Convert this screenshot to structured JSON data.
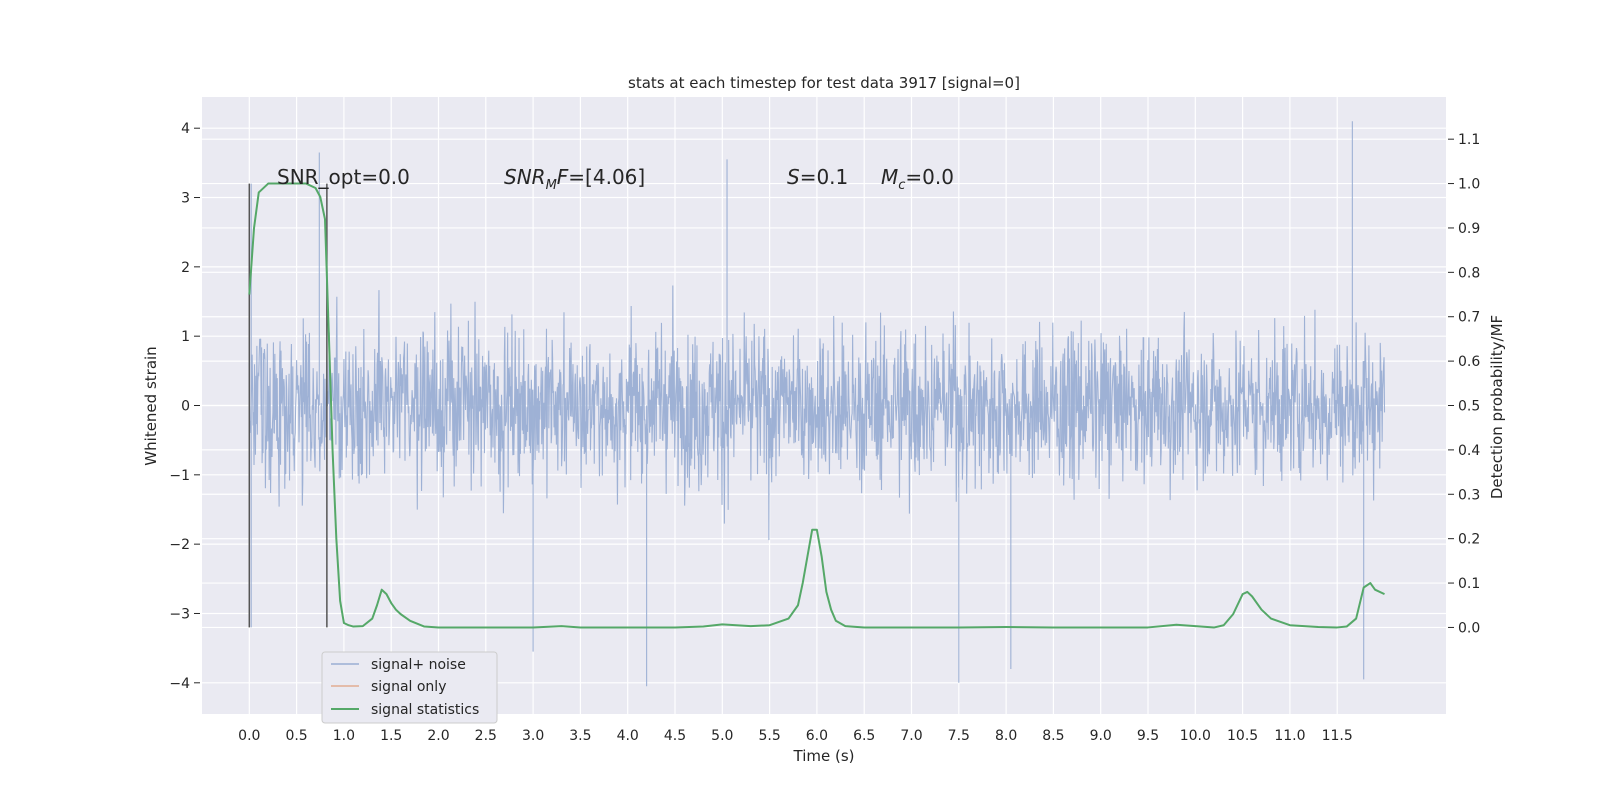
{
  "chart_data": {
    "type": "line",
    "title": "stats at each timestep for test data 3917 [signal=0]",
    "xlabel": "Time (s)",
    "ylabel": "Whitened strain",
    "y2label": "Detection probability/MF",
    "xlim": [
      -0.5,
      12.65
    ],
    "ylim": [
      -4.45,
      4.45
    ],
    "y2lim": [
      -0.195,
      1.195
    ],
    "grid": true,
    "legend_position": "lower-left",
    "x_ticks": [
      "0.0",
      "0.5",
      "1.0",
      "1.5",
      "2.0",
      "2.5",
      "3.0",
      "3.5",
      "4.0",
      "4.5",
      "5.0",
      "5.5",
      "6.0",
      "6.5",
      "7.0",
      "7.5",
      "8.0",
      "8.5",
      "9.0",
      "9.5",
      "10.0",
      "10.5",
      "11.0",
      "11.5"
    ],
    "y_ticks": [
      "4",
      "3",
      "2",
      "1",
      "0",
      "−1",
      "−2",
      "−3",
      "−4"
    ],
    "y2_ticks": [
      "1.1",
      "1.0",
      "0.9",
      "0.8",
      "0.7",
      "0.6",
      "0.5",
      "0.4",
      "0.3",
      "0.2",
      "0.1",
      "0.0"
    ],
    "annotations": [
      {
        "label": "SNR_opt=0.0"
      },
      {
        "label_main": "SNR",
        "label_sub": "M",
        "label_rest": "F=[4.06]"
      },
      {
        "label_main": "S",
        "label_rest": "=0.1"
      },
      {
        "label_main": "M",
        "label_sub": "c",
        "label_rest": "=0.0"
      }
    ],
    "vertical_markers": [
      0.0,
      0.82
    ],
    "series": [
      {
        "name": "signal+ noise",
        "color": "#9aaed3",
        "x_range": [
          0.0,
          12.0
        ],
        "typical_envelope": [
          -1.9,
          1.9
        ],
        "notable_extremes": [
          {
            "x": 0.02,
            "y": 3.2
          },
          {
            "x": 0.02,
            "y": -3.2
          },
          {
            "x": 0.74,
            "y": 3.65
          },
          {
            "x": 3.0,
            "y": -3.55
          },
          {
            "x": 4.2,
            "y": -4.05
          },
          {
            "x": 5.05,
            "y": 3.55
          },
          {
            "x": 7.5,
            "y": -4.0
          },
          {
            "x": 8.05,
            "y": -3.8
          },
          {
            "x": 11.66,
            "y": 4.1
          },
          {
            "x": 11.78,
            "y": -3.95
          }
        ]
      },
      {
        "name": "signal only",
        "color": "#dd8452",
        "x": [],
        "y": []
      },
      {
        "name": "signal statistics",
        "color": "#55a868",
        "axis": "right",
        "x": [
          0.0,
          0.05,
          0.1,
          0.2,
          0.3,
          0.4,
          0.5,
          0.6,
          0.7,
          0.75,
          0.8,
          0.85,
          0.88,
          0.92,
          0.96,
          1.0,
          1.05,
          1.1,
          1.2,
          1.3,
          1.35,
          1.4,
          1.45,
          1.5,
          1.55,
          1.6,
          1.7,
          1.85,
          2.0,
          2.5,
          3.0,
          3.3,
          3.5,
          4.0,
          4.5,
          4.8,
          5.0,
          5.3,
          5.5,
          5.7,
          5.8,
          5.85,
          5.9,
          5.95,
          6.0,
          6.05,
          6.1,
          6.15,
          6.2,
          6.3,
          6.5,
          7.0,
          7.5,
          8.0,
          8.5,
          9.0,
          9.5,
          9.8,
          10.0,
          10.2,
          10.3,
          10.4,
          10.5,
          10.55,
          10.6,
          10.7,
          10.8,
          11.0,
          11.3,
          11.5,
          11.6,
          11.7,
          11.78,
          11.85,
          11.9,
          12.0
        ],
        "y": [
          0.75,
          0.9,
          0.98,
          1.0,
          1.0,
          1.0,
          1.0,
          1.0,
          0.99,
          0.97,
          0.92,
          0.6,
          0.4,
          0.2,
          0.06,
          0.01,
          0.005,
          0.002,
          0.003,
          0.02,
          0.05,
          0.085,
          0.075,
          0.055,
          0.04,
          0.03,
          0.015,
          0.002,
          0.0,
          0.0,
          0.0,
          0.003,
          0.0,
          0.0,
          0.0,
          0.002,
          0.007,
          0.003,
          0.005,
          0.02,
          0.05,
          0.1,
          0.16,
          0.22,
          0.22,
          0.16,
          0.08,
          0.04,
          0.015,
          0.003,
          0.0,
          0.0,
          0.0,
          0.001,
          0.0,
          0.0,
          0.0,
          0.006,
          0.003,
          0.0,
          0.005,
          0.03,
          0.075,
          0.08,
          0.07,
          0.04,
          0.02,
          0.005,
          0.001,
          0.0,
          0.002,
          0.02,
          0.09,
          0.1,
          0.085,
          0.075
        ]
      }
    ]
  }
}
